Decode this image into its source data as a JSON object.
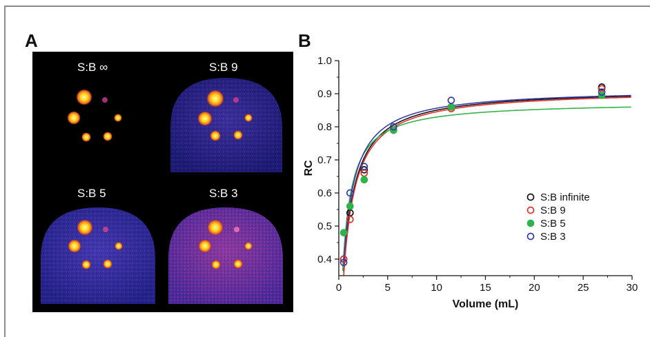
{
  "panel_a": {
    "letter": "A",
    "labels": [
      "S:B ∞",
      "S:B 9",
      "S:B 5",
      "S:B 3"
    ]
  },
  "panel_b": {
    "letter": "B"
  },
  "chart_data": {
    "type": "scatter",
    "title": "",
    "xlabel": "Volume (mL)",
    "ylabel": "RC",
    "xlim": [
      0,
      30
    ],
    "ylim": [
      0.35,
      1.0
    ],
    "xticks": [
      0,
      5,
      10,
      15,
      20,
      25,
      30
    ],
    "yticks": [
      0.4,
      0.5,
      0.6,
      0.7,
      0.8,
      0.9,
      1.0
    ],
    "ytick_labels": [
      "0.4",
      "0.5",
      "0.6",
      "0.7",
      "0.8",
      "0.9",
      "1.0"
    ],
    "legend_position": "center-right",
    "grid": false,
    "fit_curves": true,
    "series": [
      {
        "name": "S:B infinite",
        "color": "#111111",
        "marker": "open-circle",
        "x": [
          0.5,
          1.15,
          2.6,
          5.6,
          11.5,
          26.9
        ],
        "y": [
          0.4,
          0.54,
          0.67,
          0.79,
          0.86,
          0.92
        ]
      },
      {
        "name": "S:B 9",
        "color": "#e0302b",
        "marker": "open-circle",
        "x": [
          0.5,
          1.15,
          2.6,
          5.6,
          11.5,
          26.9
        ],
        "y": [
          0.4,
          0.52,
          0.66,
          0.79,
          0.855,
          0.915
        ]
      },
      {
        "name": "S:B 5",
        "color": "#2fb34a",
        "marker": "filled-circle",
        "x": [
          0.5,
          1.15,
          2.6,
          5.6,
          11.5,
          26.9
        ],
        "y": [
          0.48,
          0.56,
          0.64,
          0.79,
          0.86,
          0.895
        ]
      },
      {
        "name": "S:B 3",
        "color": "#3a3aa8",
        "marker": "open-circle",
        "x": [
          0.5,
          1.15,
          2.6,
          5.6,
          11.5,
          26.9
        ],
        "y": [
          0.39,
          0.6,
          0.68,
          0.8,
          0.88,
          0.905
        ]
      }
    ]
  }
}
